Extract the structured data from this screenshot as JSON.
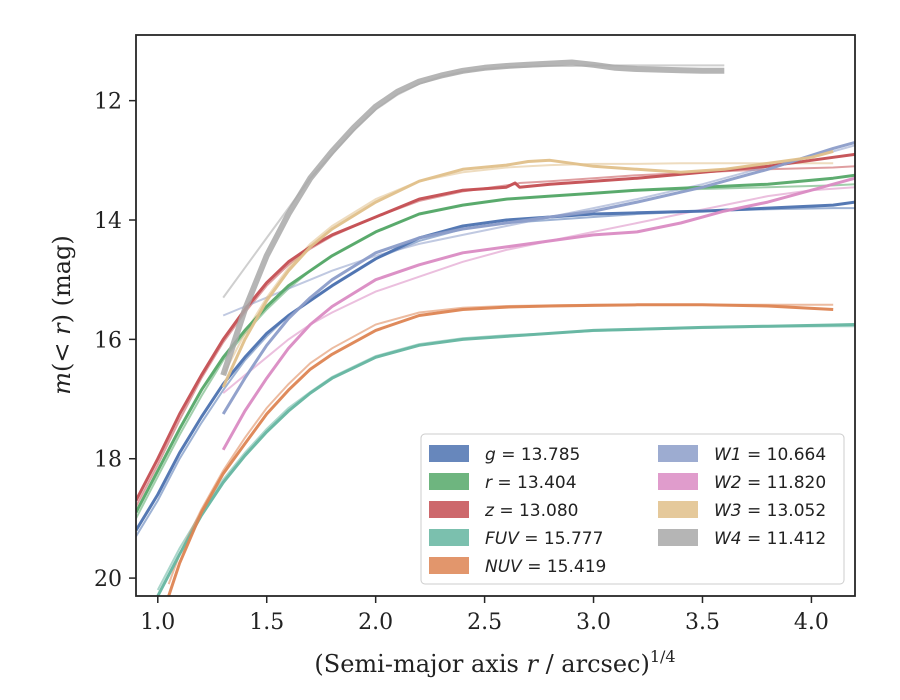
{
  "chart_data": {
    "type": "line",
    "xlabel": "(Semi-major axis r / arcsec)^1/4",
    "xlabel_parts": {
      "main": "(Semi-major axis ",
      "var": "r",
      "rest": " / arcsec)",
      "sup": "1/4"
    },
    "ylabel": "m(< r) (mag)",
    "ylabel_parts": {
      "m": "m",
      "open": "(",
      "lt": "< ",
      "r": "r",
      "close": ")",
      "unit": " (mag)"
    },
    "xlim": [
      0.9,
      4.2
    ],
    "ylim": [
      20.3,
      10.9
    ],
    "y_inverted": true,
    "x_ticks": [
      "1.0",
      "1.5",
      "2.0",
      "2.5",
      "3.0",
      "3.5",
      "4.0"
    ],
    "y_ticks": [
      "12",
      "14",
      "16",
      "18",
      "20"
    ],
    "legend_position": "lower-right",
    "series": [
      {
        "name": "g",
        "total": "13.785",
        "color": "#4c72b0",
        "x": [
          0.9,
          1.0,
          1.1,
          1.2,
          1.3,
          1.4,
          1.5,
          1.6,
          1.7,
          1.8,
          2.0,
          2.2,
          2.4,
          2.6,
          2.8,
          3.0,
          3.2,
          3.5,
          3.8,
          4.1,
          4.2
        ],
        "y": [
          19.2,
          18.6,
          17.9,
          17.3,
          16.75,
          16.3,
          15.9,
          15.6,
          15.35,
          15.1,
          14.65,
          14.3,
          14.1,
          14.0,
          13.95,
          13.9,
          13.88,
          13.85,
          13.8,
          13.75,
          13.7
        ],
        "model_y": [
          19.3,
          18.7,
          18.0,
          17.4,
          16.85,
          16.35,
          15.95,
          15.6,
          15.35,
          15.1,
          14.65,
          14.35,
          14.15,
          14.05,
          14.0,
          13.95,
          13.9,
          13.85,
          13.82,
          13.8,
          13.8
        ]
      },
      {
        "name": "r",
        "total": "13.404",
        "color": "#55a868",
        "x": [
          0.9,
          1.0,
          1.1,
          1.2,
          1.3,
          1.4,
          1.5,
          1.6,
          1.7,
          1.8,
          2.0,
          2.2,
          2.4,
          2.6,
          2.8,
          3.0,
          3.2,
          3.5,
          3.8,
          4.1,
          4.2
        ],
        "y": [
          18.9,
          18.2,
          17.5,
          16.85,
          16.3,
          15.85,
          15.45,
          15.1,
          14.85,
          14.6,
          14.2,
          13.9,
          13.75,
          13.65,
          13.6,
          13.55,
          13.5,
          13.45,
          13.4,
          13.3,
          13.25
        ],
        "model_y": [
          19.0,
          18.3,
          17.6,
          16.95,
          16.35,
          15.9,
          15.5,
          15.15,
          14.85,
          14.6,
          14.2,
          13.9,
          13.75,
          13.65,
          13.6,
          13.55,
          13.5,
          13.48,
          13.45,
          13.42,
          13.4
        ]
      },
      {
        "name": "z",
        "total": "13.080",
        "color": "#c44e52",
        "x": [
          0.9,
          1.0,
          1.1,
          1.2,
          1.3,
          1.4,
          1.5,
          1.6,
          1.7,
          1.8,
          2.0,
          2.2,
          2.4,
          2.6,
          2.64,
          2.66,
          2.8,
          3.0,
          3.2,
          3.5,
          3.8,
          4.1,
          4.2
        ],
        "y": [
          18.7,
          18.0,
          17.25,
          16.6,
          16.0,
          15.5,
          15.05,
          14.7,
          14.45,
          14.25,
          13.95,
          13.65,
          13.5,
          13.45,
          13.38,
          13.45,
          13.4,
          13.35,
          13.3,
          13.2,
          13.1,
          12.95,
          12.9
        ],
        "model_y": [
          18.8,
          18.1,
          17.35,
          16.65,
          16.05,
          15.55,
          15.1,
          14.75,
          14.48,
          14.27,
          13.95,
          13.68,
          13.52,
          13.42,
          13.4,
          13.38,
          13.35,
          13.3,
          13.25,
          13.2,
          13.15,
          13.12,
          13.1
        ]
      },
      {
        "name": "FUV",
        "total": "15.777",
        "color": "#64b5a0",
        "x": [
          1.0,
          1.1,
          1.2,
          1.3,
          1.4,
          1.5,
          1.6,
          1.7,
          1.8,
          2.0,
          2.2,
          2.4,
          2.6,
          2.8,
          3.0,
          3.2,
          3.5,
          3.8,
          4.1,
          4.2
        ],
        "y": [
          20.3,
          19.6,
          18.95,
          18.4,
          17.95,
          17.55,
          17.2,
          16.9,
          16.65,
          16.3,
          16.1,
          16.0,
          15.95,
          15.9,
          15.85,
          15.83,
          15.8,
          15.78,
          15.76,
          15.75
        ],
        "model_y": [
          20.2,
          19.5,
          18.9,
          18.35,
          17.9,
          17.5,
          17.15,
          16.88,
          16.63,
          16.28,
          16.08,
          15.98,
          15.93,
          15.9,
          15.86,
          15.84,
          15.81,
          15.79,
          15.78,
          15.78
        ]
      },
      {
        "name": "NUV",
        "total": "15.419",
        "color": "#dd8452",
        "x": [
          1.05,
          1.1,
          1.2,
          1.3,
          1.4,
          1.5,
          1.6,
          1.7,
          1.8,
          2.0,
          2.2,
          2.4,
          2.6,
          2.8,
          3.0,
          3.2,
          3.5,
          3.8,
          4.1
        ],
        "y": [
          20.3,
          19.75,
          18.9,
          18.25,
          17.75,
          17.25,
          16.85,
          16.5,
          16.25,
          15.85,
          15.6,
          15.5,
          15.46,
          15.44,
          15.43,
          15.42,
          15.42,
          15.44,
          15.5
        ],
        "model_y": [
          20.1,
          19.6,
          18.85,
          18.2,
          17.65,
          17.15,
          16.75,
          16.4,
          16.15,
          15.75,
          15.55,
          15.47,
          15.44,
          15.43,
          15.42,
          15.42,
          15.42,
          15.42,
          15.42
        ]
      },
      {
        "name": "W1",
        "total": "10.664",
        "color": "#8c9dc9",
        "x": [
          1.3,
          1.4,
          1.5,
          1.6,
          1.7,
          1.8,
          2.0,
          2.2,
          2.4,
          2.6,
          2.8,
          3.0,
          3.2,
          3.5,
          3.8,
          4.1,
          4.2
        ],
        "y": [
          17.25,
          16.65,
          16.1,
          15.65,
          15.3,
          15.0,
          14.55,
          14.3,
          14.15,
          14.05,
          13.95,
          13.85,
          13.7,
          13.45,
          13.15,
          12.8,
          12.7
        ],
        "model_y": [
          15.6,
          15.45,
          15.3,
          15.15,
          15.0,
          14.85,
          14.6,
          14.4,
          14.25,
          14.1,
          13.95,
          13.8,
          13.65,
          13.4,
          13.1,
          12.85,
          12.75
        ]
      },
      {
        "name": "W2",
        "total": "11.820",
        "color": "#da8bc3",
        "x": [
          1.3,
          1.4,
          1.5,
          1.6,
          1.7,
          1.8,
          2.0,
          2.2,
          2.4,
          2.6,
          2.8,
          3.0,
          3.2,
          3.4,
          3.6,
          3.8,
          4.0,
          4.2
        ],
        "y": [
          17.85,
          17.2,
          16.65,
          16.15,
          15.75,
          15.45,
          15.0,
          14.75,
          14.55,
          14.45,
          14.35,
          14.25,
          14.2,
          14.05,
          13.85,
          13.7,
          13.5,
          13.3
        ],
        "model_y": [
          16.9,
          16.6,
          16.3,
          16.0,
          15.75,
          15.55,
          15.2,
          14.95,
          14.7,
          14.5,
          14.35,
          14.2,
          14.05,
          13.9,
          13.75,
          13.6,
          13.5,
          13.45
        ]
      },
      {
        "name": "W3",
        "total": "13.052",
        "color": "#e0c08a",
        "x": [
          1.3,
          1.4,
          1.5,
          1.6,
          1.7,
          1.8,
          2.0,
          2.2,
          2.4,
          2.6,
          2.7,
          2.8,
          2.9,
          3.0,
          3.2,
          3.4,
          3.6,
          3.8,
          4.0,
          4.1
        ],
        "y": [
          16.8,
          16.0,
          15.35,
          14.85,
          14.45,
          14.15,
          13.7,
          13.35,
          13.15,
          13.08,
          13.02,
          13.0,
          13.05,
          13.1,
          13.15,
          13.2,
          13.15,
          13.05,
          12.95,
          12.85
        ],
        "model_y": [
          16.6,
          15.9,
          15.3,
          14.8,
          14.4,
          14.1,
          13.65,
          13.35,
          13.2,
          13.12,
          13.1,
          13.08,
          13.07,
          13.06,
          13.06,
          13.05,
          13.05,
          13.05,
          13.05,
          13.05
        ]
      },
      {
        "name": "W4",
        "total": "11.412",
        "color": "#a8a8a8",
        "x": [
          1.3,
          1.4,
          1.5,
          1.6,
          1.7,
          1.8,
          1.9,
          2.0,
          2.1,
          2.2,
          2.3,
          2.4,
          2.5,
          2.6,
          2.7,
          2.8,
          2.9,
          3.0,
          3.1,
          3.2,
          3.3,
          3.4,
          3.5,
          3.6
        ],
        "y": [
          16.6,
          15.5,
          14.6,
          13.9,
          13.3,
          12.85,
          12.45,
          12.1,
          11.85,
          11.68,
          11.58,
          11.5,
          11.45,
          11.42,
          11.4,
          11.38,
          11.36,
          11.4,
          11.45,
          11.47,
          11.48,
          11.49,
          11.5,
          11.5
        ],
        "model_y": [
          15.3,
          14.8,
          14.3,
          13.8,
          13.3,
          12.9,
          12.5,
          12.15,
          11.9,
          11.72,
          11.6,
          11.52,
          11.47,
          11.44,
          11.43,
          11.42,
          11.42,
          11.41,
          11.41,
          11.41,
          11.41,
          11.41,
          11.41,
          11.41
        ]
      }
    ]
  }
}
